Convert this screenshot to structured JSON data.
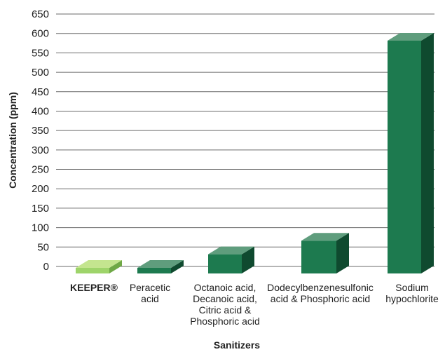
{
  "chart_data": {
    "type": "bar",
    "title": "",
    "xlabel": "Sanitizers",
    "ylabel": "Concentration (ppm)",
    "ylim": [
      0,
      650
    ],
    "yticks": [
      0,
      50,
      100,
      150,
      200,
      250,
      300,
      350,
      400,
      450,
      500,
      550,
      600,
      650
    ],
    "grid": true,
    "categories": [
      [
        "KEEPER®"
      ],
      [
        "Peracetic",
        "acid"
      ],
      [
        "Octanoic acid,",
        "Decanoic acid,",
        "Citric acid &",
        "Phosphoric acid"
      ],
      [
        "Dodecylbenzenesulfonic",
        "acid & Phosphoric acid"
      ],
      [
        "Sodium",
        "hypochlorite"
      ]
    ],
    "values": [
      0,
      0,
      35,
      70,
      585
    ],
    "colors": [
      "#9ed46a",
      "#1d7a4f",
      "#1d7a4f",
      "#1d7a4f",
      "#1d7a4f"
    ],
    "top_colors": [
      "#c4e58f",
      "#5f9d7d",
      "#5f9d7d",
      "#5f9d7d",
      "#5f9d7d"
    ],
    "side_colors": [
      "#6fa846",
      "#0f4a2f",
      "#0f4a2f",
      "#0f4a2f",
      "#0f4a2f"
    ],
    "bold_first_category": true
  }
}
